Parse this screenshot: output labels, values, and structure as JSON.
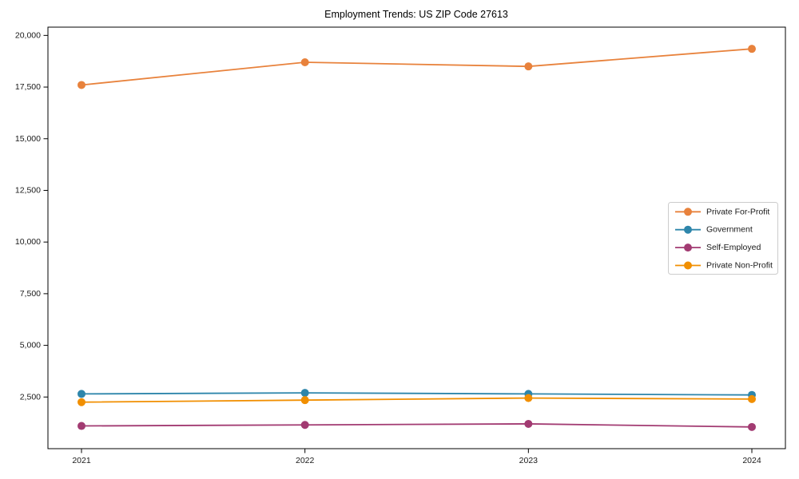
{
  "chart_data": {
    "type": "line",
    "title": "Employment Trends: US ZIP Code 27613",
    "categories": [
      "2021",
      "2022",
      "2023",
      "2024"
    ],
    "series": [
      {
        "name": "Private For-Profit",
        "color": "#E8823C",
        "values": [
          17600,
          18700,
          18500,
          19350
        ]
      },
      {
        "name": "Government",
        "color": "#2E86AB",
        "values": [
          2650,
          2700,
          2650,
          2600
        ]
      },
      {
        "name": "Self-Employed",
        "color": "#A23B72",
        "values": [
          1100,
          1150,
          1200,
          1050
        ]
      },
      {
        "name": "Private Non-Profit",
        "color": "#F18F01",
        "values": [
          2250,
          2350,
          2450,
          2400
        ]
      }
    ],
    "xlabel": "",
    "ylabel": "",
    "ylim": [
      0,
      20400
    ],
    "yticks": [
      {
        "value": 2500,
        "label": "2,500"
      },
      {
        "value": 5000,
        "label": "5,000"
      },
      {
        "value": 7500,
        "label": "7,500"
      },
      {
        "value": 10000,
        "label": "10,000"
      },
      {
        "value": 12500,
        "label": "12,500"
      },
      {
        "value": 15000,
        "label": "15,000"
      },
      {
        "value": 17500,
        "label": "17,500"
      },
      {
        "value": 20000,
        "label": "20,000"
      }
    ],
    "grid": false,
    "legend": {
      "position": "middle-right-inside",
      "border_color": "#cccccc",
      "background": "#ffffff"
    },
    "axis_color": "#000000",
    "text_color": "#1a1a1a",
    "background": "#ffffff"
  }
}
